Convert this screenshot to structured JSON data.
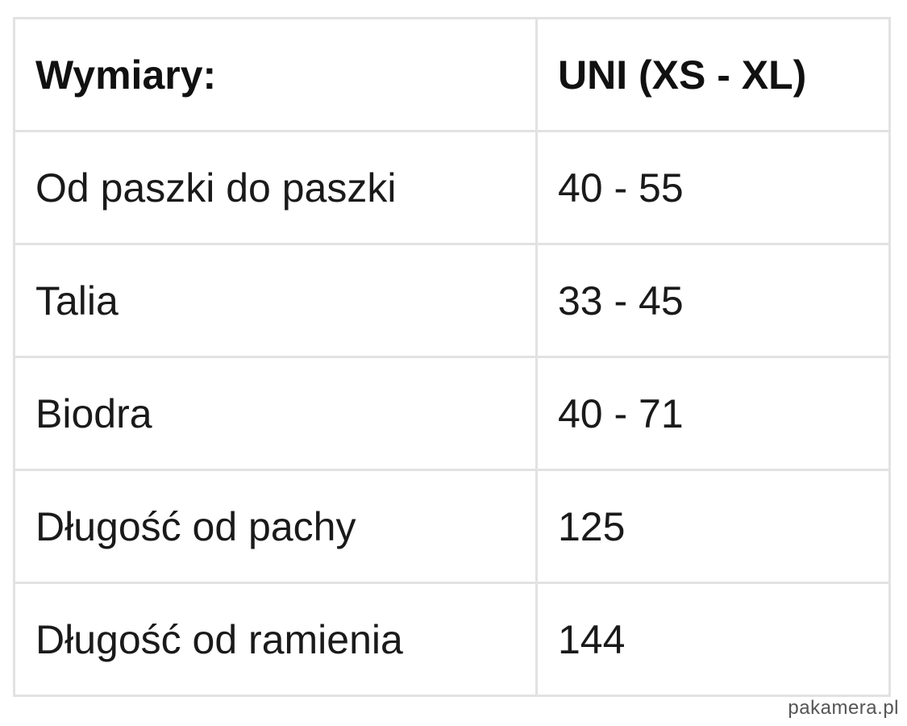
{
  "table": {
    "headers": [
      "Wymiary:",
      "UNI (XS - XL)"
    ],
    "rows": [
      [
        "Od paszki do paszki",
        "40 - 55"
      ],
      [
        "Talia",
        "33 - 45"
      ],
      [
        "Biodra",
        "40 - 71"
      ],
      [
        "Długość od pachy",
        "125"
      ],
      [
        "Długość od ramienia",
        "144"
      ]
    ]
  },
  "watermark": "pakamera.pl",
  "colors": {
    "border": "#e2e2e2",
    "text": "#1a1a1a"
  }
}
